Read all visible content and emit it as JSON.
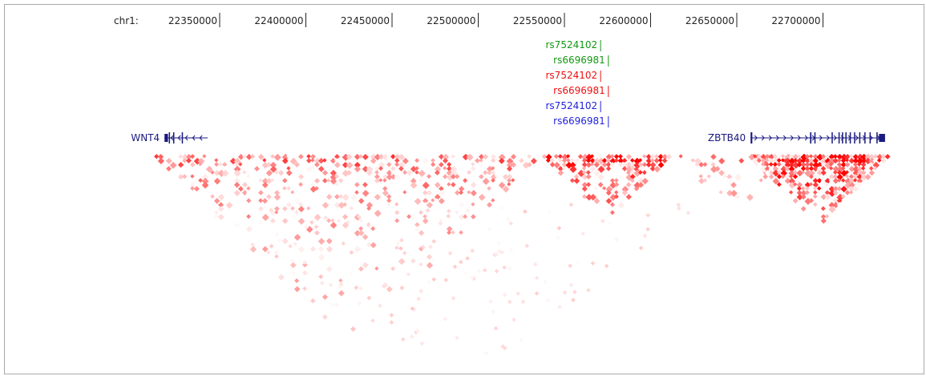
{
  "axis": {
    "chrom_label": "chr1:",
    "ticks": [
      {
        "pos": 22350000,
        "label": "22350000"
      },
      {
        "pos": 22400000,
        "label": "22400000"
      },
      {
        "pos": 22450000,
        "label": "22450000"
      },
      {
        "pos": 22500000,
        "label": "22500000"
      },
      {
        "pos": 22550000,
        "label": "22550000"
      },
      {
        "pos": 22600000,
        "label": "22600000"
      },
      {
        "pos": 22650000,
        "label": "22650000"
      },
      {
        "pos": 22700000,
        "label": "22700000"
      }
    ]
  },
  "snps": [
    {
      "name": "rs7524102",
      "pos": 22571000,
      "color": "#119911"
    },
    {
      "name": "rs6696981",
      "pos": 22575500,
      "color": "#119911"
    },
    {
      "name": "rs7524102",
      "pos": 22571000,
      "color": "#ee1111"
    },
    {
      "name": "rs6696981",
      "pos": 22575500,
      "color": "#ee1111"
    },
    {
      "name": "rs7524102",
      "pos": 22571000,
      "color": "#2222dd"
    },
    {
      "name": "rs6696981",
      "pos": 22575500,
      "color": "#2222dd"
    }
  ],
  "genes": [
    {
      "name": "WNT4",
      "start": 22318000,
      "end": 22343000,
      "strand": "-",
      "exons": [
        [
          22318000,
          22320000
        ],
        [
          22320500,
          22321000
        ],
        [
          22323000,
          22323400
        ],
        [
          22328000,
          22328400
        ]
      ],
      "color": "#1a1a80"
    },
    {
      "name": "ZBTB40",
      "start": 22658000,
      "end": 22736000,
      "strand": "+",
      "exons": [
        [
          22658000,
          22659000
        ],
        [
          22692500,
          22693300
        ],
        [
          22695000,
          22695300
        ],
        [
          22705000,
          22705400
        ],
        [
          22709000,
          22709300
        ],
        [
          22711000,
          22711300
        ],
        [
          22713000,
          22713300
        ],
        [
          22715500,
          22715800
        ],
        [
          22718000,
          22718300
        ],
        [
          22721000,
          22721300
        ],
        [
          22724000,
          22724300
        ],
        [
          22727000,
          22727300
        ],
        [
          22731000,
          22731300
        ],
        [
          22732500,
          22736000
        ]
      ],
      "color": "#1a1a80"
    }
  ],
  "ld_heatmap": {
    "color": "#ff0000",
    "regions": [
      {
        "start": 22310000,
        "end": 22535000,
        "density": 0.45
      },
      {
        "start": 22535000,
        "end": 22612000,
        "density": 0.8
      },
      {
        "start": 22612000,
        "end": 22680000,
        "density": 0.3
      },
      {
        "start": 22655000,
        "end": 22738000,
        "density": 1.0
      }
    ]
  }
}
